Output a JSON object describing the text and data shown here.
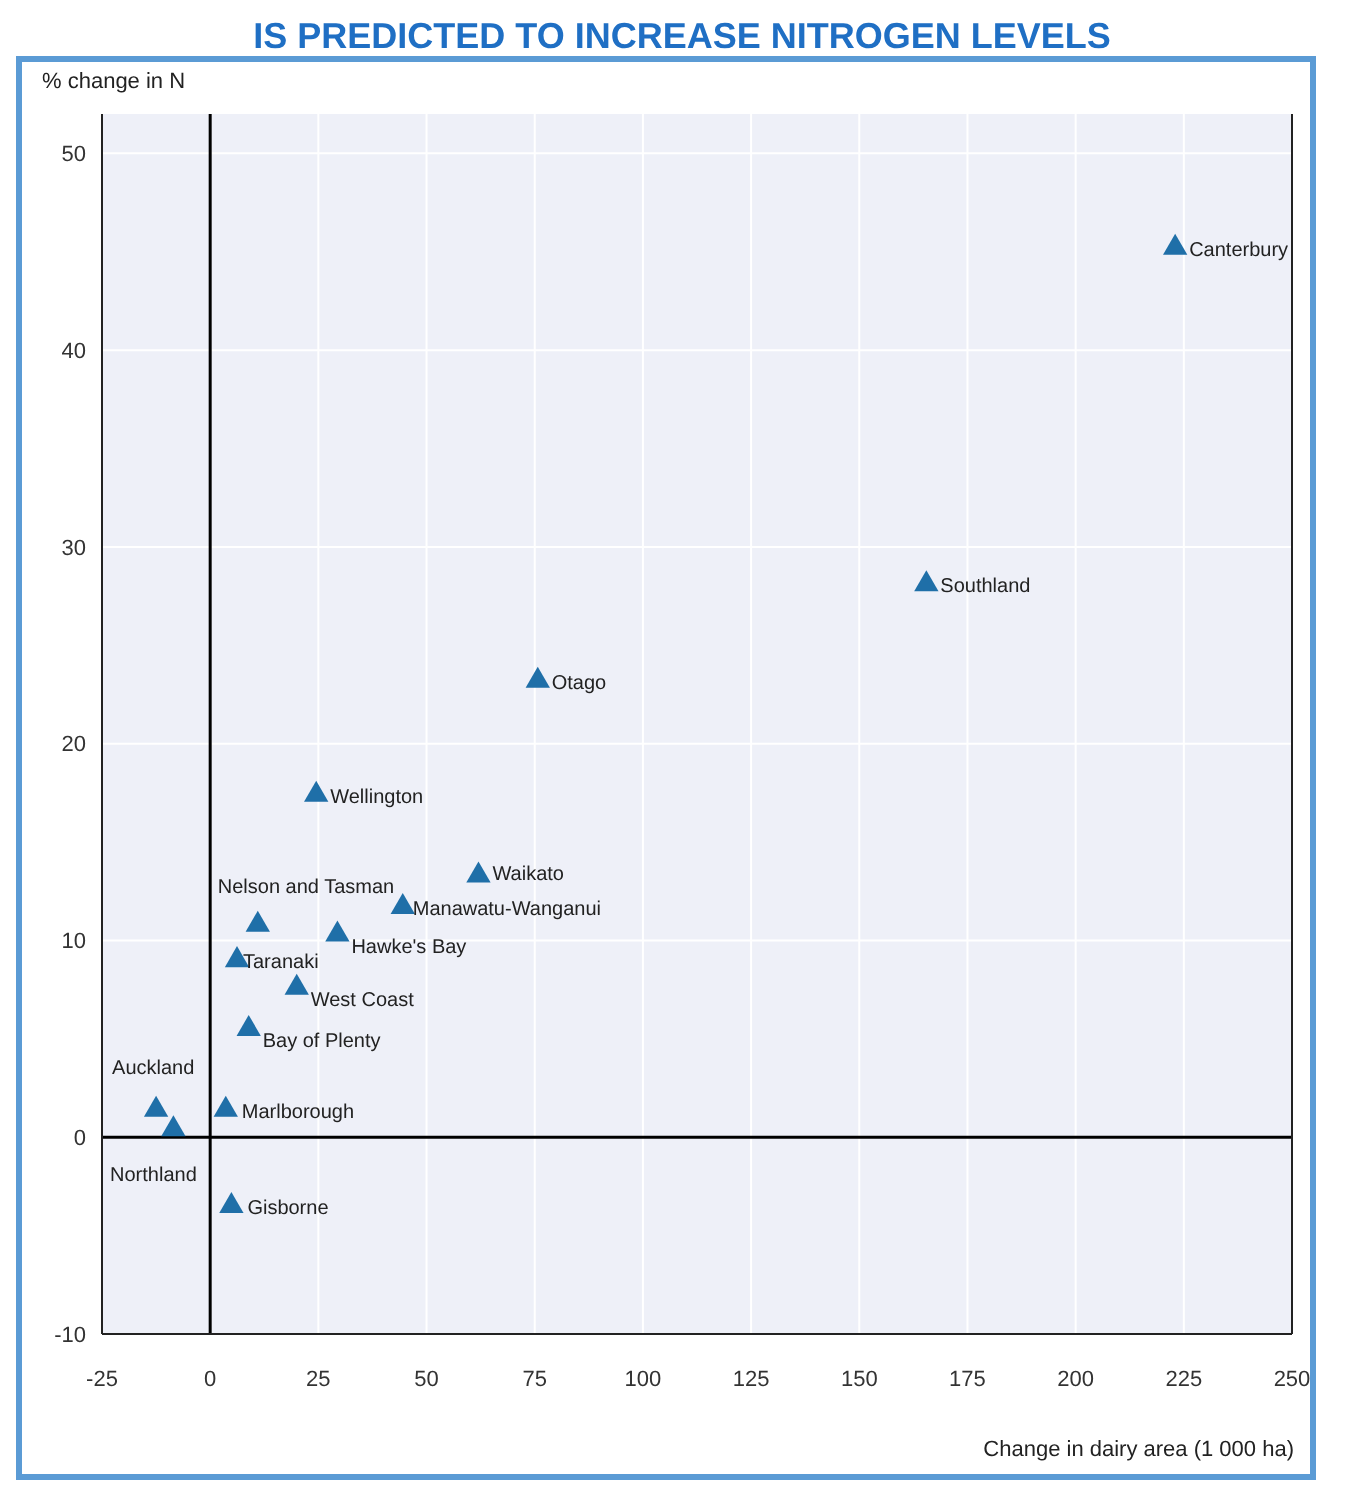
{
  "chart_data": {
    "type": "scatter",
    "title": "IS PREDICTED TO INCREASE NITROGEN LEVELS",
    "xlabel": "Change in dairy area (1 000 ha)",
    "ylabel": "% change in N",
    "x": [
      223,
      165.5,
      75.7,
      24.5,
      62,
      44.5,
      11,
      29.4,
      6.2,
      20,
      8.9,
      -12.5,
      -8.5,
      3.6,
      4.9
    ],
    "series": [
      {
        "color": "#1f6fa8",
        "values": [
          45.2,
          28.1,
          23.2,
          17.4,
          13.3,
          11.7,
          10.8,
          10.3,
          9.0,
          7.6,
          5.5,
          1.4,
          0.4,
          1.4,
          -3.5
        ]
      }
    ],
    "annotations": [
      {
        "text": "Canterbury",
        "x": 223,
        "y": 45.2
      },
      {
        "text": "Southland",
        "x": 165.5,
        "y": 28.1
      },
      {
        "text": "Otago",
        "x": 75.7,
        "y": 23.2
      },
      {
        "text": "Wellington",
        "x": 24.5,
        "y": 17.4
      },
      {
        "text": "Waikato",
        "x": 62,
        "y": 13.3
      },
      {
        "text": "Manawatu-Wanganui",
        "x": 44.5,
        "y": 11.7
      },
      {
        "text": "Nelson and Tasman",
        "x": 11,
        "y": 10.8
      },
      {
        "text": "Hawke's Bay",
        "x": 29.4,
        "y": 10.3
      },
      {
        "text": "Taranaki",
        "x": 6.2,
        "y": 9.0
      },
      {
        "text": "West Coast",
        "x": 20,
        "y": 7.6
      },
      {
        "text": "Bay of Plenty",
        "x": 8.9,
        "y": 5.5
      },
      {
        "text": "Auckland",
        "x": -12.5,
        "y": 1.4
      },
      {
        "text": "Northland",
        "x": -8.5,
        "y": 0.4
      },
      {
        "text": "Marlborough",
        "x": 3.6,
        "y": 1.4
      },
      {
        "text": "Gisborne",
        "x": 4.9,
        "y": -3.5
      }
    ],
    "xlim": [
      -25,
      250
    ],
    "xticks": [
      -25,
      0,
      25,
      50,
      75,
      100,
      125,
      150,
      175,
      200,
      225,
      250
    ],
    "ylim": [
      -10,
      52
    ],
    "yticks": [
      -10,
      0,
      10,
      20,
      30,
      40,
      50
    ],
    "grid": true,
    "marker": "triangle",
    "legend": false
  }
}
